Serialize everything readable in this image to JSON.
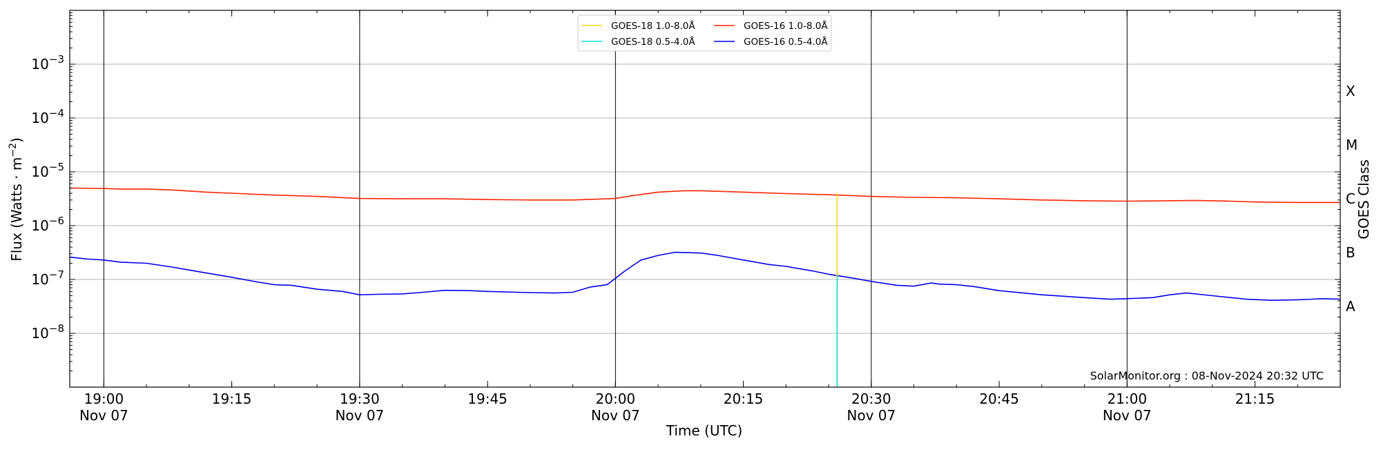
{
  "chart_data": {
    "type": "line",
    "ylabel_main": "Flux (Watts · m",
    "ylabel_sup": "−2",
    "ylabel_close": ")",
    "xlabel": "Time (UTC)",
    "y2label": "GOES Class",
    "watermark": "SolarMonitor.org : 08-Nov-2024 20:32 UTC",
    "x_start": "18:56",
    "x_end": "21:25",
    "ylim_log10": [
      -9,
      -2
    ],
    "yscale": "log",
    "grid": "horizontal at decades",
    "legend_position": "top-center",
    "x_ticks": [
      {
        "t": "19:00",
        "line1": "19:00",
        "line2": "Nov 07"
      },
      {
        "t": "19:15",
        "line1": "19:15",
        "line2": ""
      },
      {
        "t": "19:30",
        "line1": "19:30",
        "line2": "Nov 07"
      },
      {
        "t": "19:45",
        "line1": "19:45",
        "line2": ""
      },
      {
        "t": "20:00",
        "line1": "20:00",
        "line2": "Nov 07"
      },
      {
        "t": "20:15",
        "line1": "20:15",
        "line2": ""
      },
      {
        "t": "20:30",
        "line1": "20:30",
        "line2": "Nov 07"
      },
      {
        "t": "20:45",
        "line1": "20:45",
        "line2": ""
      },
      {
        "t": "21:00",
        "line1": "21:00",
        "line2": "Nov 07"
      },
      {
        "t": "21:15",
        "line1": "21:15",
        "line2": ""
      }
    ],
    "vertical_lines": [
      "19:00",
      "19:30",
      "20:00",
      "20:30",
      "21:00"
    ],
    "y_ticks": [
      {
        "exp": -3,
        "base": "10",
        "sup": "−3"
      },
      {
        "exp": -4,
        "base": "10",
        "sup": "−4"
      },
      {
        "exp": -5,
        "base": "10",
        "sup": "−5"
      },
      {
        "exp": -6,
        "base": "10",
        "sup": "−6"
      },
      {
        "exp": -7,
        "base": "10",
        "sup": "−7"
      },
      {
        "exp": -8,
        "base": "10",
        "sup": "−8"
      }
    ],
    "goes_classes": [
      {
        "label": "X",
        "exp": -3.5
      },
      {
        "label": "M",
        "exp": -4.5
      },
      {
        "label": "C",
        "exp": -5.5
      },
      {
        "label": "B",
        "exp": -6.5
      },
      {
        "label": "A",
        "exp": -7.5
      }
    ],
    "legend": [
      {
        "label": "GOES-18 1.0-8.0Å",
        "color": "#ffd700"
      },
      {
        "label": "GOES-18 0.5-4.0Å",
        "color": "#00e5e5"
      },
      {
        "label": "GOES-16 1.0-8.0Å",
        "color": "#ff2200"
      },
      {
        "label": "GOES-16 0.5-4.0Å",
        "color": "#0000ee"
      }
    ],
    "series": [
      {
        "name": "GOES-16 1.0-8.0Å",
        "color": "#ff2200",
        "points": [
          [
            "18:56",
            5e-06
          ],
          [
            "19:00",
            4.9e-06
          ],
          [
            "19:02",
            4.8e-06
          ],
          [
            "19:05",
            4.8e-06
          ],
          [
            "19:08",
            4.6e-06
          ],
          [
            "19:12",
            4.2e-06
          ],
          [
            "19:15",
            4e-06
          ],
          [
            "19:20",
            3.7e-06
          ],
          [
            "19:25",
            3.5e-06
          ],
          [
            "19:30",
            3.2e-06
          ],
          [
            "19:35",
            3.15e-06
          ],
          [
            "19:40",
            3.15e-06
          ],
          [
            "19:45",
            3.05e-06
          ],
          [
            "19:50",
            3e-06
          ],
          [
            "19:55",
            3e-06
          ],
          [
            "20:00",
            3.2e-06
          ],
          [
            "20:02",
            3.6e-06
          ],
          [
            "20:05",
            4.2e-06
          ],
          [
            "20:08",
            4.45e-06
          ],
          [
            "20:10",
            4.45e-06
          ],
          [
            "20:15",
            4.2e-06
          ],
          [
            "20:20",
            3.95e-06
          ],
          [
            "20:25",
            3.75e-06
          ],
          [
            "20:30",
            3.5e-06
          ],
          [
            "20:35",
            3.35e-06
          ],
          [
            "20:40",
            3.3e-06
          ],
          [
            "20:45",
            3.15e-06
          ],
          [
            "20:50",
            3e-06
          ],
          [
            "20:55",
            2.9e-06
          ],
          [
            "21:00",
            2.85e-06
          ],
          [
            "21:05",
            2.9e-06
          ],
          [
            "21:08",
            2.95e-06
          ],
          [
            "21:12",
            2.85e-06
          ],
          [
            "21:15",
            2.75e-06
          ],
          [
            "21:20",
            2.7e-06
          ],
          [
            "21:25",
            2.7e-06
          ]
        ]
      },
      {
        "name": "GOES-16 0.5-4.0Å",
        "color": "#0000ee",
        "points": [
          [
            "18:56",
            2.6e-07
          ],
          [
            "18:58",
            2.4e-07
          ],
          [
            "19:00",
            2.3e-07
          ],
          [
            "19:02",
            2.1e-07
          ],
          [
            "19:05",
            2e-07
          ],
          [
            "19:08",
            1.7e-07
          ],
          [
            "19:10",
            1.5e-07
          ],
          [
            "19:15",
            1.1e-07
          ],
          [
            "19:18",
            9e-08
          ],
          [
            "19:20",
            8e-08
          ],
          [
            "19:22",
            7.8e-08
          ],
          [
            "19:25",
            6.6e-08
          ],
          [
            "19:28",
            6e-08
          ],
          [
            "19:30",
            5.2e-08
          ],
          [
            "19:32",
            5.3e-08
          ],
          [
            "19:35",
            5.4e-08
          ],
          [
            "19:37",
            5.7e-08
          ],
          [
            "19:40",
            6.3e-08
          ],
          [
            "19:43",
            6.2e-08
          ],
          [
            "19:45",
            6e-08
          ],
          [
            "19:50",
            5.7e-08
          ],
          [
            "19:53",
            5.6e-08
          ],
          [
            "19:55",
            5.8e-08
          ],
          [
            "19:57",
            7.2e-08
          ],
          [
            "19:59",
            8e-08
          ],
          [
            "20:00",
            1.05e-07
          ],
          [
            "20:01",
            1.4e-07
          ],
          [
            "20:02",
            1.8e-07
          ],
          [
            "20:03",
            2.3e-07
          ],
          [
            "20:05",
            2.8e-07
          ],
          [
            "20:07",
            3.2e-07
          ],
          [
            "20:10",
            3.1e-07
          ],
          [
            "20:12",
            2.8e-07
          ],
          [
            "20:15",
            2.3e-07
          ],
          [
            "20:18",
            1.9e-07
          ],
          [
            "20:20",
            1.75e-07
          ],
          [
            "20:23",
            1.45e-07
          ],
          [
            "20:25",
            1.25e-07
          ],
          [
            "20:28",
            1.05e-07
          ],
          [
            "20:30",
            9.2e-08
          ],
          [
            "20:33",
            7.8e-08
          ],
          [
            "20:35",
            7.5e-08
          ],
          [
            "20:37",
            8.6e-08
          ],
          [
            "20:38",
            8.2e-08
          ],
          [
            "20:40",
            8e-08
          ],
          [
            "20:42",
            7.4e-08
          ],
          [
            "20:45",
            6.2e-08
          ],
          [
            "20:50",
            5.2e-08
          ],
          [
            "20:55",
            4.6e-08
          ],
          [
            "20:58",
            4.3e-08
          ],
          [
            "21:00",
            4.4e-08
          ],
          [
            "21:03",
            4.6e-08
          ],
          [
            "21:05",
            5.2e-08
          ],
          [
            "21:07",
            5.6e-08
          ],
          [
            "21:10",
            5e-08
          ],
          [
            "21:14",
            4.3e-08
          ],
          [
            "21:17",
            4.1e-08
          ],
          [
            "21:20",
            4.2e-08
          ],
          [
            "21:23",
            4.4e-08
          ],
          [
            "21:25",
            4.3e-08
          ]
        ]
      },
      {
        "name": "GOES-18 1.0-8.0Å",
        "color": "#ffd700",
        "points": [
          [
            "20:26",
            4e-06
          ],
          [
            "20:26",
            1e-09
          ]
        ]
      },
      {
        "name": "GOES-18 0.5-4.0Å",
        "color": "#00e5e5",
        "points": [
          [
            "20:26",
            1.15e-07
          ],
          [
            "20:26",
            1e-09
          ]
        ]
      }
    ]
  }
}
